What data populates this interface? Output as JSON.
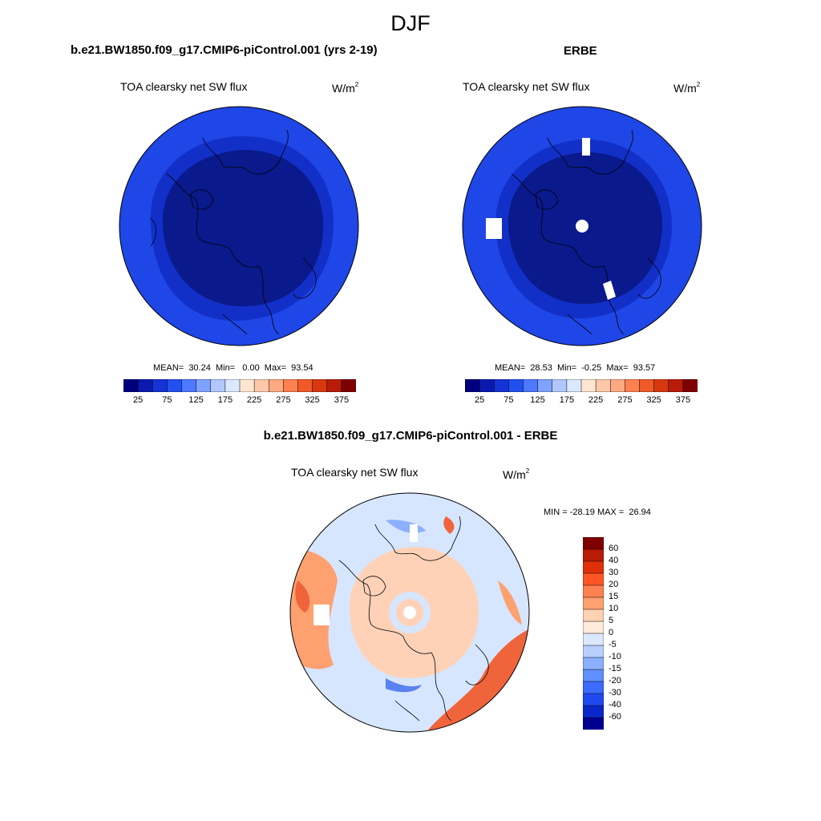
{
  "season": "DJF",
  "panels": {
    "model": {
      "title": "b.e21.BW1850.f09_g17.CMIP6-piControl.001 (yrs 2-19)",
      "variable": "TOA clearsky net SW flux",
      "unit_base": "W/m",
      "unit_exp": "2",
      "stats": "MEAN=  30.24  Min=   0.00  Max=  93.54",
      "mean": 30.24,
      "min": 0.0,
      "max": 93.54
    },
    "obs": {
      "title": "ERBE",
      "variable": "TOA clearsky net SW flux",
      "unit_base": "W/m",
      "unit_exp": "2",
      "stats": "MEAN=  28.53  Min=  -0.25  Max=  93.57",
      "mean": 28.53,
      "min": -0.25,
      "max": 93.57
    },
    "diff": {
      "title": "b.e21.BW1850.f09_g17.CMIP6-piControl.001 - ERBE",
      "variable": "TOA clearsky net SW flux",
      "unit_base": "W/m",
      "unit_exp": "2",
      "stats": "MIN = -28.19 MAX =  26.94",
      "min": -28.19,
      "max": 26.94
    }
  },
  "colorbar_abs": {
    "colors": [
      "#00007f",
      "#0a1ab0",
      "#1533d6",
      "#2050f0",
      "#4d78ff",
      "#7ea3ff",
      "#b0c8ff",
      "#dce8ff",
      "#ffe6d2",
      "#ffc8aa",
      "#ffaa82",
      "#ff8050",
      "#f05a28",
      "#d83810",
      "#b81c08",
      "#7f0000"
    ],
    "labels": [
      "25",
      "75",
      "125",
      "175",
      "225",
      "275",
      "325",
      "375"
    ]
  },
  "colorbar_diff": {
    "colors": [
      "#7f0000",
      "#b81c08",
      "#e0300a",
      "#ff5525",
      "#ff8050",
      "#ffa070",
      "#ffd2b4",
      "#ffeadc",
      "#dce8ff",
      "#b8d0ff",
      "#8cb0ff",
      "#6090ff",
      "#3c6cff",
      "#2048f0",
      "#0a28c8",
      "#000090"
    ],
    "labels": [
      "60",
      "40",
      "30",
      "20",
      "15",
      "10",
      "5",
      "0",
      "-5",
      "-10",
      "-15",
      "-20",
      "-30",
      "-40",
      "-60"
    ]
  },
  "map_colors": {
    "model_outer": "#1f46e6",
    "model_mid": "#1230c8",
    "model_inner": "#0a1a8c",
    "obs_outer": "#1f46e6",
    "obs_mid": "#1230c8",
    "obs_inner": "#0a1a8c",
    "diff_base": "#d6e6ff",
    "diff_warm": "#ffd2b8",
    "diff_hot": "#f0643c",
    "diff_cold": "#5a82f0"
  }
}
